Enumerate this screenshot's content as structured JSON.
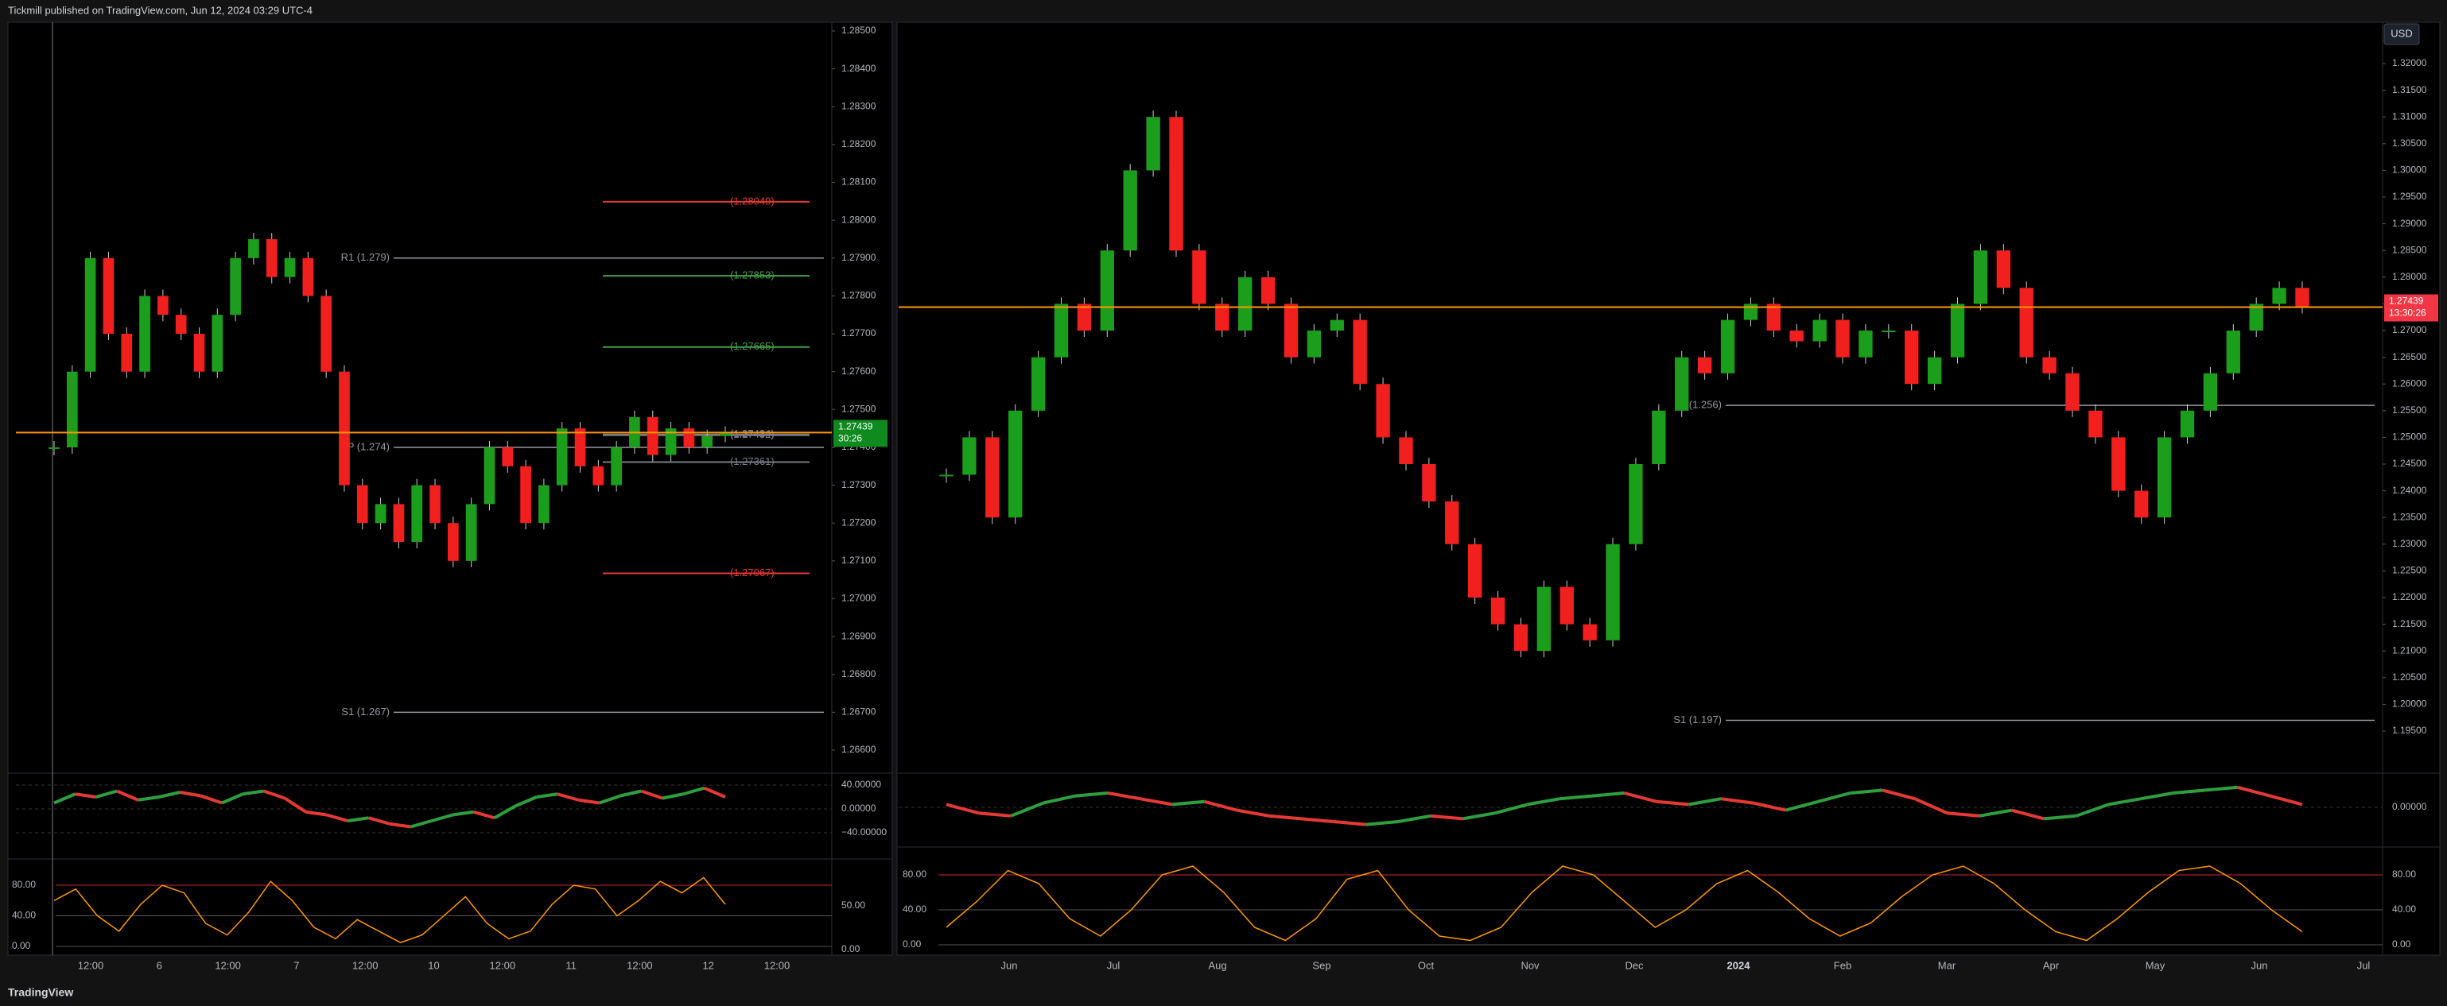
{
  "header": {
    "text": "Tickmill published on TradingView.com, Jun 12, 2024 03:29 UTC-4"
  },
  "footer": {
    "brand": "TradingView"
  },
  "currency": "USD",
  "left_chart": {
    "price_ticks": [
      {
        "value": 1.285,
        "label": "1.28500"
      },
      {
        "value": 1.284,
        "label": "1.28400"
      },
      {
        "value": 1.283,
        "label": "1.28300"
      },
      {
        "value": 1.282,
        "label": "1.28200"
      },
      {
        "value": 1.281,
        "label": "1.28100"
      },
      {
        "value": 1.28,
        "label": "1.28000"
      },
      {
        "value": 1.279,
        "label": "1.27900"
      },
      {
        "value": 1.278,
        "label": "1.27800"
      },
      {
        "value": 1.277,
        "label": "1.27700"
      },
      {
        "value": 1.276,
        "label": "1.27600"
      },
      {
        "value": 1.275,
        "label": "1.27500"
      },
      {
        "value": 1.274,
        "label": "1.27400"
      },
      {
        "value": 1.273,
        "label": "1.27300"
      },
      {
        "value": 1.272,
        "label": "1.27200"
      },
      {
        "value": 1.271,
        "label": "1.27100"
      },
      {
        "value": 1.27,
        "label": "1.27000"
      },
      {
        "value": 1.269,
        "label": "1.26900"
      },
      {
        "value": 1.268,
        "label": "1.26800"
      },
      {
        "value": 1.267,
        "label": "1.26700"
      },
      {
        "value": 1.266,
        "label": "1.26600"
      }
    ],
    "time_labels": [
      "12:00",
      "6",
      "12:00",
      "7",
      "12:00",
      "10",
      "12:00",
      "11",
      "12:00",
      "12",
      "12:00"
    ],
    "pivots": [
      {
        "value": 1.279,
        "label": "R1 (1.279)"
      },
      {
        "value": 1.274,
        "label": "P (1.274)"
      },
      {
        "value": 1.267,
        "label": "S1 (1.267)"
      }
    ],
    "price_levels": [
      {
        "value": 1.28049,
        "label": "(1.28049)",
        "color": "#e53935"
      },
      {
        "value": 1.27853,
        "label": "(1.27853)",
        "color": "#43a047"
      },
      {
        "value": 1.27665,
        "label": "(1.27665)",
        "color": "#43a047"
      },
      {
        "value": 1.27434,
        "label": "(1.27434)",
        "color": "#787b86"
      },
      {
        "value": 1.27432,
        "label": "(1.27432)",
        "color": "#787b86"
      },
      {
        "value": 1.27361,
        "label": "(1.27361)",
        "color": "#787b86"
      },
      {
        "value": 1.27067,
        "label": "(1.27067)",
        "color": "#e53935"
      }
    ],
    "last_price": {
      "value": 1.27439,
      "label": "1.27439",
      "countdown": "30:26",
      "color": "#0e8a1f"
    },
    "closes": [
      1.274,
      1.276,
      1.279,
      1.277,
      1.276,
      1.278,
      1.2775,
      1.277,
      1.276,
      1.2775,
      1.279,
      1.2795,
      1.2785,
      1.279,
      1.278,
      1.276,
      1.273,
      1.272,
      1.2725,
      1.2715,
      1.273,
      1.272,
      1.271,
      1.2725,
      1.274,
      1.2735,
      1.272,
      1.273,
      1.2745,
      1.2735,
      1.273,
      1.274,
      1.2748,
      1.2738,
      1.2745,
      1.274,
      1.2743,
      1.27439
    ],
    "momentum": {
      "ticks": [
        {
          "value": 40,
          "label": "40.00000"
        },
        {
          "value": 0,
          "label": "0.00000"
        },
        {
          "value": -40,
          "label": "−40.00000"
        }
      ],
      "values": [
        10,
        25,
        20,
        30,
        15,
        20,
        28,
        22,
        10,
        25,
        30,
        18,
        -5,
        -10,
        -20,
        -15,
        -25,
        -30,
        -20,
        -10,
        -5,
        -15,
        5,
        20,
        25,
        15,
        10,
        22,
        30,
        18,
        25,
        35,
        20
      ]
    },
    "stoch": {
      "ticks": [
        {
          "value": 80,
          "label": "80.00"
        },
        {
          "value": 40,
          "label": "40.00"
        },
        {
          "value": 0,
          "label": "0.00"
        }
      ],
      "right_ticks": [
        {
          "value": 50,
          "label": "50.00"
        },
        {
          "value": 0,
          "label": "0.00"
        }
      ],
      "values": [
        60,
        75,
        40,
        20,
        55,
        80,
        70,
        30,
        15,
        45,
        85,
        60,
        25,
        10,
        35,
        20,
        5,
        15,
        40,
        65,
        30,
        10,
        20,
        55,
        80,
        75,
        40,
        60,
        85,
        70,
        90,
        55
      ]
    }
  },
  "right_chart": {
    "price_ticks": [
      {
        "value": 1.32,
        "label": "1.32000"
      },
      {
        "value": 1.315,
        "label": "1.31500"
      },
      {
        "value": 1.31,
        "label": "1.31000"
      },
      {
        "value": 1.305,
        "label": "1.30500"
      },
      {
        "value": 1.3,
        "label": "1.30000"
      },
      {
        "value": 1.295,
        "label": "1.29500"
      },
      {
        "value": 1.29,
        "label": "1.29000"
      },
      {
        "value": 1.285,
        "label": "1.28500"
      },
      {
        "value": 1.28,
        "label": "1.28000"
      },
      {
        "value": 1.275,
        "label": "1.27500"
      },
      {
        "value": 1.27,
        "label": "1.27000"
      },
      {
        "value": 1.265,
        "label": "1.26500"
      },
      {
        "value": 1.26,
        "label": "1.26000"
      },
      {
        "value": 1.255,
        "label": "1.25500"
      },
      {
        "value": 1.25,
        "label": "1.25000"
      },
      {
        "value": 1.245,
        "label": "1.24500"
      },
      {
        "value": 1.24,
        "label": "1.24000"
      },
      {
        "value": 1.235,
        "label": "1.23500"
      },
      {
        "value": 1.23,
        "label": "1.23000"
      },
      {
        "value": 1.225,
        "label": "1.22500"
      },
      {
        "value": 1.22,
        "label": "1.22000"
      },
      {
        "value": 1.215,
        "label": "1.21500"
      },
      {
        "value": 1.21,
        "label": "1.21000"
      },
      {
        "value": 1.205,
        "label": "1.20500"
      },
      {
        "value": 1.2,
        "label": "1.20000"
      },
      {
        "value": 1.195,
        "label": "1.19500"
      }
    ],
    "time_labels": [
      "Jun",
      "Jul",
      "Aug",
      "Sep",
      "Oct",
      "Nov",
      "Dec",
      "2024",
      "Feb",
      "Mar",
      "Apr",
      "May",
      "Jun",
      "Jul"
    ],
    "pivots": [
      {
        "value": 1.256,
        "label": "P (1.256)"
      },
      {
        "value": 1.197,
        "label": "S1 (1.197)"
      }
    ],
    "last_price": {
      "value": 1.27439,
      "label": "1.27439",
      "countdown": "13:30:26",
      "color": "#f23645"
    },
    "closes": [
      1.243,
      1.25,
      1.235,
      1.255,
      1.265,
      1.275,
      1.27,
      1.285,
      1.3,
      1.31,
      1.285,
      1.275,
      1.27,
      1.28,
      1.275,
      1.265,
      1.27,
      1.272,
      1.26,
      1.25,
      1.245,
      1.238,
      1.23,
      1.22,
      1.215,
      1.21,
      1.222,
      1.215,
      1.212,
      1.23,
      1.245,
      1.255,
      1.265,
      1.262,
      1.272,
      1.275,
      1.27,
      1.268,
      1.272,
      1.265,
      1.27,
      1.27,
      1.26,
      1.265,
      1.275,
      1.285,
      1.278,
      1.265,
      1.262,
      1.255,
      1.25,
      1.24,
      1.235,
      1.25,
      1.255,
      1.262,
      1.27,
      1.275,
      1.278,
      1.27439
    ],
    "momentum": {
      "ticks": [
        {
          "value": 0,
          "label": "0.00000"
        }
      ],
      "values": [
        0.002,
        -0.004,
        -0.006,
        0.003,
        0.008,
        0.01,
        0.006,
        0.002,
        0.004,
        -0.002,
        -0.006,
        -0.008,
        -0.01,
        -0.012,
        -0.01,
        -0.006,
        -0.008,
        -0.004,
        0.002,
        0.006,
        0.008,
        0.01,
        0.004,
        0.002,
        0.006,
        0.003,
        -0.002,
        0.004,
        0.01,
        0.012,
        0.006,
        -0.004,
        -0.006,
        -0.002,
        -0.008,
        -0.006,
        0.002,
        0.006,
        0.01,
        0.012,
        0.014,
        0.008,
        0.002
      ]
    },
    "stoch": {
      "ticks": [
        {
          "value": 80,
          "label": "80.00"
        },
        {
          "value": 40,
          "label": "40.00"
        },
        {
          "value": 0,
          "label": "0.00"
        }
      ],
      "values": [
        20,
        50,
        85,
        70,
        30,
        10,
        40,
        80,
        90,
        60,
        20,
        5,
        30,
        75,
        85,
        40,
        10,
        5,
        20,
        60,
        90,
        80,
        50,
        20,
        40,
        70,
        85,
        60,
        30,
        10,
        25,
        55,
        80,
        90,
        70,
        40,
        15,
        5,
        30,
        60,
        85,
        90,
        70,
        40,
        15
      ]
    }
  }
}
